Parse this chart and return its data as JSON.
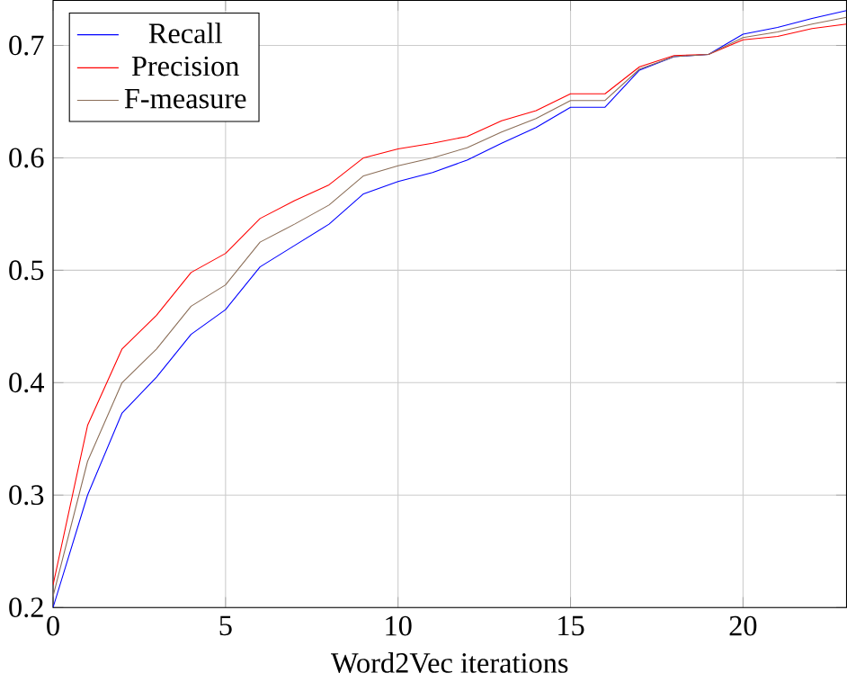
{
  "chart_data": {
    "type": "line",
    "xlabel": "Word2Vec iterations",
    "x": [
      0,
      1,
      2,
      3,
      4,
      5,
      6,
      7,
      8,
      9,
      10,
      11,
      12,
      13,
      14,
      15,
      16,
      17,
      18,
      19,
      20,
      21,
      22,
      23
    ],
    "series": [
      {
        "name": "Recall",
        "color": "#0000ff",
        "values": [
          0.2,
          0.3,
          0.373,
          0.405,
          0.443,
          0.465,
          0.503,
          0.522,
          0.541,
          0.568,
          0.579,
          0.587,
          0.598,
          0.613,
          0.627,
          0.645,
          0.645,
          0.678,
          0.69,
          0.692,
          0.71,
          0.716,
          0.724,
          0.731
        ]
      },
      {
        "name": "Precision",
        "color": "#ff0000",
        "values": [
          0.22,
          0.362,
          0.43,
          0.46,
          0.498,
          0.515,
          0.546,
          0.562,
          0.576,
          0.6,
          0.608,
          0.613,
          0.619,
          0.633,
          0.642,
          0.657,
          0.657,
          0.681,
          0.691,
          0.692,
          0.705,
          0.708,
          0.715,
          0.719
        ]
      },
      {
        "name": "F-measure",
        "color": "#8b6e58",
        "values": [
          0.21,
          0.33,
          0.4,
          0.43,
          0.468,
          0.487,
          0.525,
          0.541,
          0.558,
          0.584,
          0.593,
          0.6,
          0.609,
          0.623,
          0.635,
          0.651,
          0.651,
          0.679,
          0.69,
          0.692,
          0.707,
          0.712,
          0.719,
          0.725
        ]
      }
    ],
    "xlim": [
      0,
      23
    ],
    "ylim": [
      0.2,
      0.74
    ],
    "xticks": [
      0,
      5,
      10,
      15,
      20
    ],
    "yticks": [
      0.2,
      0.3,
      0.4,
      0.5,
      0.6,
      0.7
    ],
    "grid": true,
    "legend": "top left",
    "marker": "none",
    "line_style": "solid"
  }
}
